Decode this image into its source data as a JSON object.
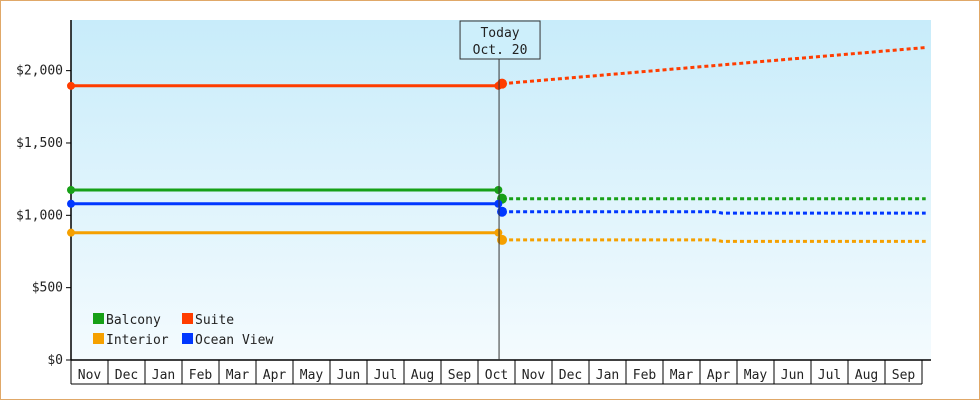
{
  "chart_data": {
    "type": "line",
    "title": "",
    "xlabel": "",
    "ylabel": "",
    "ylim": [
      0,
      2350
    ],
    "y_ticks": [
      0,
      500,
      1000,
      1500,
      2000
    ],
    "y_tick_labels": [
      "$0",
      "$500",
      "$1,000",
      "$1,500",
      "$2,000"
    ],
    "x_months": [
      "Nov",
      "Dec",
      "Jan",
      "Feb",
      "Mar",
      "Apr",
      "May",
      "Jun",
      "Jul",
      "Aug",
      "Sep",
      "Oct",
      "Nov",
      "Dec",
      "Jan",
      "Feb",
      "Mar",
      "Apr",
      "May",
      "Jun",
      "Jul",
      "Aug",
      "Sep"
    ],
    "x_range": [
      0,
      23.1
    ],
    "grid": false,
    "legend_position": "bottom-left",
    "today": {
      "label": "Today",
      "date": "Oct. 20",
      "x": 11.65
    },
    "series": [
      {
        "name": "Balcony",
        "color": "#17a017",
        "historical": [
          [
            0,
            1175
          ],
          [
            11.55,
            1175
          ]
        ],
        "forecast": [
          [
            11.65,
            1115
          ],
          [
            23.1,
            1115
          ]
        ]
      },
      {
        "name": "Suite",
        "color": "#ff3d00",
        "historical": [
          [
            0,
            1895
          ],
          [
            11.55,
            1895
          ]
        ],
        "forecast": [
          [
            11.65,
            1910
          ],
          [
            23.1,
            2160
          ]
        ]
      },
      {
        "name": "Interior",
        "color": "#f5a000",
        "historical": [
          [
            0,
            880
          ],
          [
            11.55,
            880
          ]
        ],
        "forecast": [
          [
            11.65,
            830
          ],
          [
            17.4,
            830
          ],
          [
            17.6,
            820
          ],
          [
            23.1,
            820
          ]
        ]
      },
      {
        "name": "Ocean View",
        "color": "#0037ff",
        "historical": [
          [
            0,
            1080
          ],
          [
            11.55,
            1080
          ]
        ],
        "forecast": [
          [
            11.65,
            1025
          ],
          [
            17.4,
            1025
          ],
          [
            17.6,
            1015
          ],
          [
            23.1,
            1015
          ]
        ]
      }
    ]
  }
}
